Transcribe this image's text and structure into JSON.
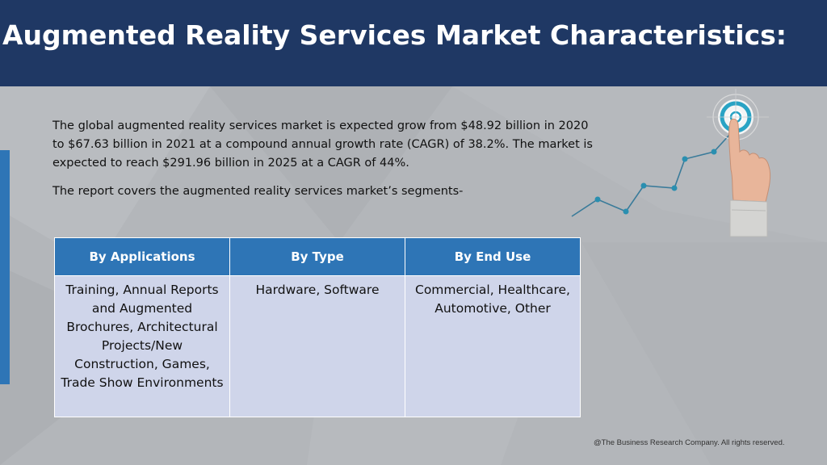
{
  "header": {
    "title": "Augmented Reality Services Market Characteristics:"
  },
  "intro": {
    "paragraph1": "The global augmented reality services market is expected grow from $48.92 billion in 2020 to $67.63 billion in 2021 at a compound annual growth rate (CAGR) of 38.2%. The market is expected to reach $291.96 billion in 2025 at a CAGR of 44%.",
    "paragraph2": "The report covers the augmented reality services market’s segments-"
  },
  "table": {
    "headers": [
      "By Applications",
      "By Type",
      "By End Use"
    ],
    "cells": [
      "Training, Annual Reports and Augmented Brochures, Architectural Projects/New Construction, Games, Trade Show Environments",
      "Hardware, Software",
      "Commercial, Healthcare, Automotive, Other"
    ]
  },
  "footer": {
    "copyright": "@The Business Research Company. All rights reserved."
  },
  "colors": {
    "header_bg": "#1f3864",
    "table_header_bg": "#2e75b6",
    "table_cell_bg": "#cfd5ea",
    "accent": "#2e75b6",
    "target_ring": "#29a3c4"
  },
  "decoration": {
    "illustration": "hand-touching-target-with-growth-line"
  }
}
